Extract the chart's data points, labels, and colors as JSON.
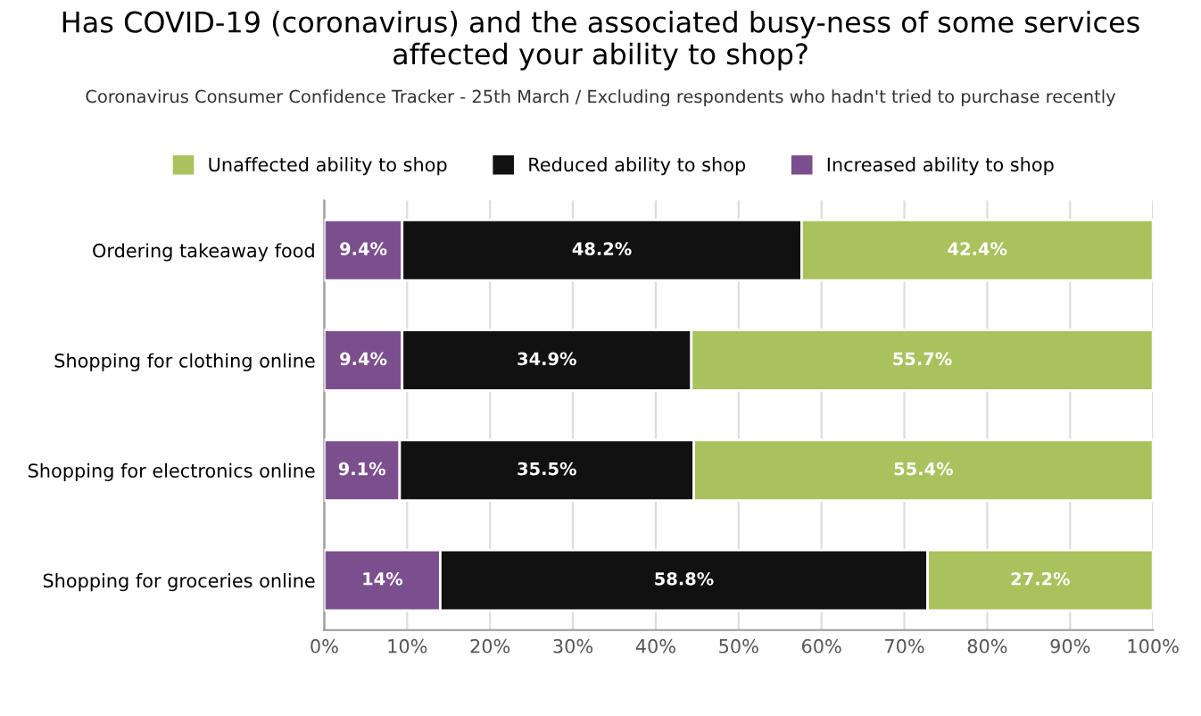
{
  "chart_data": {
    "type": "bar",
    "orientation": "horizontal",
    "stacked": true,
    "title": "Has COVID-19 (coronavirus) and the associated busy-ness of some services affected your ability to shop?",
    "subtitle": "Coronavirus Consumer Confidence Tracker - 25th March / Excluding respondents who hadn't tried to purchase recently",
    "categories": [
      "Ordering takeaway food",
      "Shopping for clothing online",
      "Shopping for electronics online",
      "Shopping for groceries online"
    ],
    "series": [
      {
        "name": "Increased ability to shop",
        "color": "#7b4f8e",
        "values": [
          9.4,
          9.4,
          9.1,
          14
        ],
        "value_labels": [
          "9.4%",
          "9.4%",
          "9.1%",
          "14%"
        ]
      },
      {
        "name": "Reduced ability to shop",
        "color": "#111111",
        "values": [
          48.2,
          34.9,
          35.5,
          58.8
        ],
        "value_labels": [
          "48.2%",
          "34.9%",
          "35.5%",
          "58.8%"
        ]
      },
      {
        "name": "Unaffected ability to shop",
        "color": "#a9c25d",
        "values": [
          42.4,
          55.7,
          55.4,
          27.2
        ],
        "value_labels": [
          "42.4%",
          "55.7%",
          "55.4%",
          "27.2%"
        ]
      }
    ],
    "xlim": [
      0,
      100
    ],
    "xticks": [
      {
        "value": 0,
        "label": "0%"
      },
      {
        "value": 10,
        "label": "10%"
      },
      {
        "value": 20,
        "label": "20%"
      },
      {
        "value": 30,
        "label": "30%"
      },
      {
        "value": 40,
        "label": "40%"
      },
      {
        "value": 50,
        "label": "50%"
      },
      {
        "value": 60,
        "label": "60%"
      },
      {
        "value": 70,
        "label": "70%"
      },
      {
        "value": 80,
        "label": "80%"
      },
      {
        "value": 90,
        "label": "90%"
      },
      {
        "value": 100,
        "label": "100%"
      }
    ],
    "grid": "x",
    "legend": "top"
  }
}
